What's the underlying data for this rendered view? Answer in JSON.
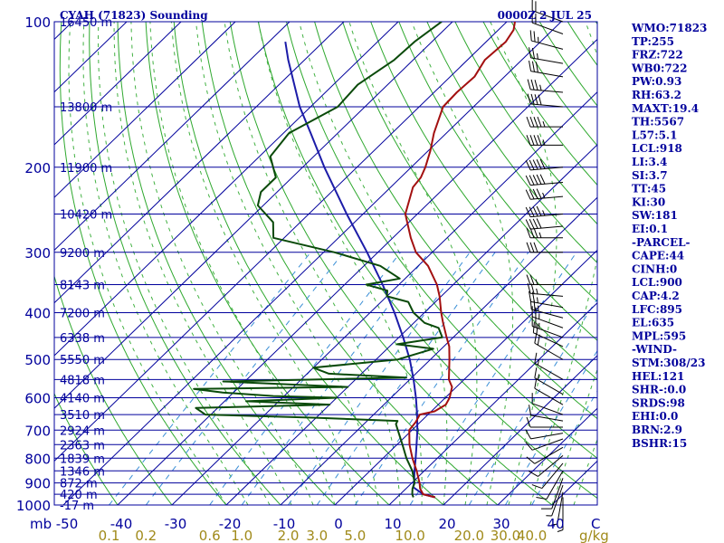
{
  "header": {
    "station": "CYAH (71823) Sounding",
    "time": "0000Z  2 JUL 25"
  },
  "indices": [
    "WMO:71823",
    "TP:255",
    "FRZ:722",
    "WB0:722",
    "PW:0.93",
    "RH:63.2",
    "MAXT:19.4",
    "TH:5567",
    "L57:5.1",
    "LCL:918",
    "LI:3.4",
    "SI:3.7",
    "TT:45",
    "KI:30",
    "SW:181",
    "EI:0.1",
    "-PARCEL-",
    "CAPE:44",
    "CINH:0",
    "LCL:900",
    "CAP:4.2",
    "LFC:895",
    "EL:635",
    "MPL:595",
    "-WIND-",
    "STM:308/23",
    "HEL:121",
    "SHR-:0.0",
    "SRDS:98",
    "EHI:0.0",
    "BRN:2.9",
    "BSHR:15"
  ],
  "colors": {
    "isobar": "#00009c",
    "isotherm": "#00009c",
    "dry_adiabat": "#2ea82e",
    "moist_adiabat": "#2ea82e",
    "mixing_ratio": "#3a8fd6",
    "temperature": "#a31010",
    "dewpoint": "#0a4a0a",
    "parcel": "#1c1ca8",
    "wind": "#000000"
  },
  "chart_data": {
    "type": "skew-t",
    "pressure_ticks": [
      100,
      200,
      300,
      400,
      500,
      600,
      700,
      800,
      900,
      1000
    ],
    "pressure_axis_label": "mb",
    "height_labels": [
      {
        "p": 100,
        "label": "16450 m"
      },
      {
        "p": 150,
        "label": "13800 m"
      },
      {
        "p": 200,
        "label": "11900 m"
      },
      {
        "p": 250,
        "label": "10420 m"
      },
      {
        "p": 300,
        "label": "9200 m"
      },
      {
        "p": 350,
        "label": "8143 m"
      },
      {
        "p": 400,
        "label": "7200 m"
      },
      {
        "p": 450,
        "label": "6338 m"
      },
      {
        "p": 500,
        "label": "5550 m"
      },
      {
        "p": 550,
        "label": "4818 m"
      },
      {
        "p": 600,
        "label": "4140 m"
      },
      {
        "p": 650,
        "label": "3510 m"
      },
      {
        "p": 700,
        "label": "2924 m"
      },
      {
        "p": 750,
        "label": "2363 m"
      },
      {
        "p": 800,
        "label": "1839 m"
      },
      {
        "p": 850,
        "label": "1346 m"
      },
      {
        "p": 900,
        "label": "872 m"
      },
      {
        "p": 950,
        "label": "420 m"
      },
      {
        "p": 1000,
        "label": "-17 m"
      }
    ],
    "temperature_ticks": [
      -50,
      -40,
      -30,
      -20,
      -10,
      0,
      10,
      20,
      30,
      40
    ],
    "temperature_axis_label": "C",
    "mixing_ratio_ticks": [
      "0.1",
      "0.2",
      "0.6",
      "1.0",
      "2.0",
      "3.0",
      "5.0",
      "10.0",
      "20.0",
      "30.0",
      "40.0"
    ],
    "mixing_ratio_values": [
      0.1,
      0.2,
      0.6,
      1.0,
      2.0,
      3.0,
      5.0,
      10.0,
      20.0,
      30.0,
      40.0
    ],
    "mixing_ratio_unit": "g/kg",
    "temperature": [
      [
        964,
        17.0
      ],
      [
        950,
        14.2
      ],
      [
        925,
        12.6
      ],
      [
        900,
        11.4
      ],
      [
        850,
        8.6
      ],
      [
        800,
        5.4
      ],
      [
        750,
        2.3
      ],
      [
        700,
        -0.5
      ],
      [
        675,
        -0.8
      ],
      [
        650,
        -1.5
      ],
      [
        640,
        0.6
      ],
      [
        620,
        1.4
      ],
      [
        600,
        0.8
      ],
      [
        570,
        -0.8
      ],
      [
        550,
        -2.8
      ],
      [
        500,
        -6.5
      ],
      [
        470,
        -9.0
      ],
      [
        450,
        -11.2
      ],
      [
        420,
        -14.6
      ],
      [
        400,
        -16.9
      ],
      [
        370,
        -20.3
      ],
      [
        350,
        -23.0
      ],
      [
        320,
        -28.2
      ],
      [
        300,
        -33.0
      ],
      [
        280,
        -36.7
      ],
      [
        250,
        -42.2
      ],
      [
        220,
        -45.9
      ],
      [
        210,
        -46.3
      ],
      [
        200,
        -47.4
      ],
      [
        185,
        -49.6
      ],
      [
        170,
        -52.3
      ],
      [
        150,
        -55.6
      ],
      [
        140,
        -55.8
      ],
      [
        130,
        -55.5
      ],
      [
        120,
        -56.8
      ],
      [
        110,
        -56.4
      ],
      [
        104,
        -57.2
      ],
      [
        100,
        -58.5
      ]
    ],
    "dewpoint": [
      [
        964,
        13.0
      ],
      [
        950,
        12.2
      ],
      [
        925,
        11.2
      ],
      [
        900,
        10.5
      ],
      [
        850,
        7.8
      ],
      [
        800,
        4.3
      ],
      [
        750,
        1.0
      ],
      [
        700,
        -2.6
      ],
      [
        680,
        -4.1
      ],
      [
        670,
        -4.4
      ],
      [
        660,
        -20.0
      ],
      [
        650,
        -41.0
      ],
      [
        630,
        -44.0
      ],
      [
        620,
        -20.0
      ],
      [
        610,
        -36.0
      ],
      [
        600,
        -20.0
      ],
      [
        595,
        -32.0
      ],
      [
        585,
        -42.0
      ],
      [
        575,
        -48.0
      ],
      [
        570,
        -20.0
      ],
      [
        555,
        -44.0
      ],
      [
        545,
        -11.0
      ],
      [
        535,
        -26.0
      ],
      [
        520,
        -30.0
      ],
      [
        500,
        -16.0
      ],
      [
        475,
        -11.5
      ],
      [
        465,
        -19.0
      ],
      [
        450,
        -12.0
      ],
      [
        430,
        -14.5
      ],
      [
        420,
        -18.0
      ],
      [
        400,
        -22.0
      ],
      [
        380,
        -25.0
      ],
      [
        370,
        -30.0
      ],
      [
        360,
        -31.0
      ],
      [
        350,
        -36.0
      ],
      [
        340,
        -31.0
      ],
      [
        320,
        -37.0
      ],
      [
        300,
        -48.0
      ],
      [
        280,
        -62.0
      ],
      [
        260,
        -65.0
      ],
      [
        240,
        -71.0
      ],
      [
        225,
        -73.0
      ],
      [
        210,
        -73.0
      ],
      [
        190,
        -78.0
      ],
      [
        170,
        -79.0
      ],
      [
        150,
        -75.0
      ],
      [
        135,
        -75.5
      ],
      [
        120,
        -73.5
      ],
      [
        110,
        -73.2
      ],
      [
        100,
        -72.0
      ]
    ],
    "parcel": [
      [
        964,
        17.0
      ],
      [
        950,
        14.2
      ],
      [
        918,
        11.0
      ],
      [
        900,
        10.4
      ],
      [
        850,
        8.2
      ],
      [
        800,
        6.0
      ],
      [
        750,
        3.6
      ],
      [
        700,
        1.0
      ],
      [
        650,
        -2.0
      ],
      [
        600,
        -5.4
      ],
      [
        550,
        -9.3
      ],
      [
        500,
        -13.8
      ],
      [
        450,
        -19.2
      ],
      [
        400,
        -25.5
      ],
      [
        350,
        -33.0
      ],
      [
        300,
        -42.0
      ],
      [
        250,
        -53.0
      ],
      [
        200,
        -66.0
      ],
      [
        170,
        -75.0
      ],
      [
        150,
        -82.0
      ],
      [
        120,
        -93.0
      ],
      [
        110,
        -97.0
      ]
    ],
    "wind_barbs": [
      {
        "p": 100,
        "dir": 290,
        "spd": 20
      },
      {
        "p": 106,
        "dir": 290,
        "spd": 22
      },
      {
        "p": 114,
        "dir": 285,
        "spd": 25
      },
      {
        "p": 122,
        "dir": 280,
        "spd": 28
      },
      {
        "p": 130,
        "dir": 280,
        "spd": 30
      },
      {
        "p": 140,
        "dir": 275,
        "spd": 35
      },
      {
        "p": 150,
        "dir": 275,
        "spd": 40
      },
      {
        "p": 165,
        "dir": 270,
        "spd": 45
      },
      {
        "p": 180,
        "dir": 270,
        "spd": 45
      },
      {
        "p": 200,
        "dir": 265,
        "spd": 50
      },
      {
        "p": 215,
        "dir": 265,
        "spd": 50
      },
      {
        "p": 230,
        "dir": 265,
        "spd": 45
      },
      {
        "p": 250,
        "dir": 265,
        "spd": 45
      },
      {
        "p": 265,
        "dir": 265,
        "spd": 40
      },
      {
        "p": 280,
        "dir": 270,
        "spd": 35
      },
      {
        "p": 300,
        "dir": 270,
        "spd": 30
      },
      {
        "p": 350,
        "dir": 270,
        "spd": 25
      },
      {
        "p": 370,
        "dir": 275,
        "spd": 25
      },
      {
        "p": 390,
        "dir": 280,
        "spd": 25
      },
      {
        "p": 410,
        "dir": 285,
        "spd": 25
      },
      {
        "p": 430,
        "dir": 290,
        "spd": 25
      },
      {
        "p": 450,
        "dir": 290,
        "spd": 25
      },
      {
        "p": 470,
        "dir": 295,
        "spd": 20
      },
      {
        "p": 500,
        "dir": 300,
        "spd": 20
      },
      {
        "p": 550,
        "dir": 300,
        "spd": 15
      },
      {
        "p": 590,
        "dir": 300,
        "spd": 15
      },
      {
        "p": 620,
        "dir": 300,
        "spd": 10
      },
      {
        "p": 650,
        "dir": 290,
        "spd": 10
      },
      {
        "p": 670,
        "dir": 280,
        "spd": 10
      },
      {
        "p": 690,
        "dir": 270,
        "spd": 10
      },
      {
        "p": 710,
        "dir": 260,
        "spd": 10
      },
      {
        "p": 730,
        "dir": 250,
        "spd": 10
      },
      {
        "p": 760,
        "dir": 240,
        "spd": 10
      },
      {
        "p": 790,
        "dir": 230,
        "spd": 10
      },
      {
        "p": 820,
        "dir": 220,
        "spd": 10
      },
      {
        "p": 850,
        "dir": 210,
        "spd": 10
      },
      {
        "p": 880,
        "dir": 200,
        "spd": 10
      },
      {
        "p": 910,
        "dir": 200,
        "spd": 5
      },
      {
        "p": 940,
        "dir": 190,
        "spd": 5
      },
      {
        "p": 964,
        "dir": 180,
        "spd": 5
      }
    ]
  }
}
